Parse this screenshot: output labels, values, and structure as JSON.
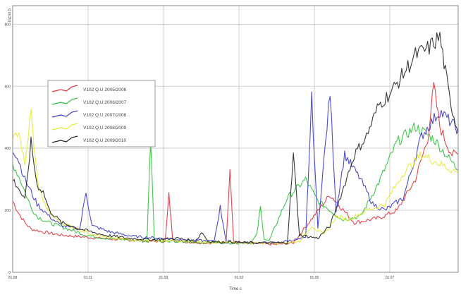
{
  "chart_data": {
    "type": "line",
    "ylabel": "Q [m3/s]",
    "xlabel": "Time c",
    "x_ticks": [
      "01.08",
      "01.11",
      "01.03",
      "01.02",
      "01.05",
      "01.07"
    ],
    "y_ticks": [
      0,
      200,
      400,
      600,
      800
    ],
    "ylim": [
      0,
      860
    ],
    "xlim": [
      0,
      365
    ],
    "grid": true,
    "legend_position": "top-left",
    "series": [
      {
        "name": "V102 Q.U  2005/2006",
        "color": "#e0333a",
        "x": [
          0,
          5,
          10,
          15,
          25,
          40,
          55,
          70,
          90,
          110,
          125,
          128,
          131,
          135,
          155,
          170,
          175,
          178,
          181,
          190,
          205,
          215,
          230,
          260,
          280,
          300,
          315,
          330,
          340,
          345,
          350,
          355,
          360,
          365
        ],
        "y": [
          230,
          190,
          160,
          140,
          130,
          120,
          115,
          110,
          105,
          100,
          100,
          250,
          110,
          100,
          95,
          95,
          100,
          340,
          100,
          95,
          92,
          90,
          95,
          250,
          160,
          175,
          200,
          300,
          430,
          600,
          470,
          420,
          380,
          380
        ]
      },
      {
        "name": "V102 Q.U  2006/2007",
        "color": "#2fbf3a",
        "x": [
          0,
          5,
          10,
          15,
          20,
          30,
          45,
          60,
          75,
          95,
          110,
          113,
          116,
          120,
          140,
          160,
          180,
          195,
          200,
          203,
          206,
          210,
          225,
          240,
          250,
          270,
          285,
          300,
          315,
          330,
          345,
          355,
          365
        ],
        "y": [
          350,
          310,
          260,
          210,
          180,
          160,
          140,
          120,
          110,
          105,
          100,
          440,
          110,
          100,
          98,
          96,
          95,
          95,
          120,
          210,
          110,
          100,
          240,
          300,
          230,
          170,
          180,
          290,
          420,
          470,
          430,
          380,
          330
        ]
      },
      {
        "name": "V102 Q.U  2007/2008",
        "color": "#3a3ac8",
        "x": [
          0,
          5,
          10,
          15,
          20,
          30,
          40,
          55,
          60,
          65,
          80,
          100,
          120,
          140,
          165,
          170,
          175,
          190,
          215,
          240,
          245,
          250,
          260,
          265,
          272,
          285,
          295,
          305,
          320,
          335,
          350,
          365
        ],
        "y": [
          400,
          360,
          300,
          260,
          220,
          180,
          150,
          140,
          260,
          150,
          130,
          115,
          110,
          105,
          100,
          210,
          100,
          95,
          95,
          110,
          560,
          140,
          580,
          200,
          380,
          300,
          220,
          200,
          240,
          440,
          520,
          460
        ]
      },
      {
        "name": "V102 Q.U  2008/2009",
        "color": "#e6ea30",
        "x": [
          0,
          5,
          10,
          15,
          20,
          25,
          30,
          40,
          60,
          80,
          100,
          120,
          140,
          160,
          180,
          200,
          220,
          235,
          245,
          255,
          265,
          275,
          290,
          305,
          320,
          335,
          350,
          365
        ],
        "y": [
          420,
          460,
          340,
          520,
          300,
          230,
          190,
          160,
          130,
          110,
          105,
          102,
          100,
          98,
          96,
          95,
          95,
          100,
          150,
          120,
          180,
          170,
          200,
          220,
          320,
          380,
          350,
          320
        ]
      },
      {
        "name": "V102 Q.U  2009/2010",
        "color": "#222222",
        "x": [
          0,
          5,
          10,
          15,
          20,
          25,
          30,
          40,
          55,
          75,
          95,
          115,
          135,
          150,
          155,
          160,
          170,
          190,
          210,
          225,
          230,
          235,
          250,
          260,
          270,
          280,
          290,
          300,
          310,
          320,
          330,
          340,
          350,
          358,
          365
        ],
        "y": [
          300,
          270,
          230,
          420,
          280,
          260,
          200,
          160,
          140,
          120,
          110,
          105,
          110,
          100,
          130,
          100,
          98,
          96,
          95,
          95,
          380,
          120,
          110,
          150,
          260,
          380,
          440,
          540,
          580,
          640,
          700,
          720,
          760,
          560,
          450
        ]
      }
    ]
  }
}
